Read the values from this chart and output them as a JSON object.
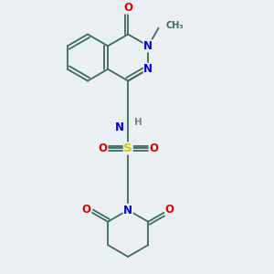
{
  "background_color": "#eaeff3",
  "fig_width": 3.0,
  "fig_height": 3.0,
  "dpi": 100,
  "bond_color": "#3d6b5e",
  "N_color": "#0000dd",
  "O_color": "#dd0000",
  "S_color": "#cccc00",
  "H_color": "#808080",
  "lw": 1.3,
  "xlim": [
    0,
    10
  ],
  "ylim": [
    0,
    10
  ]
}
